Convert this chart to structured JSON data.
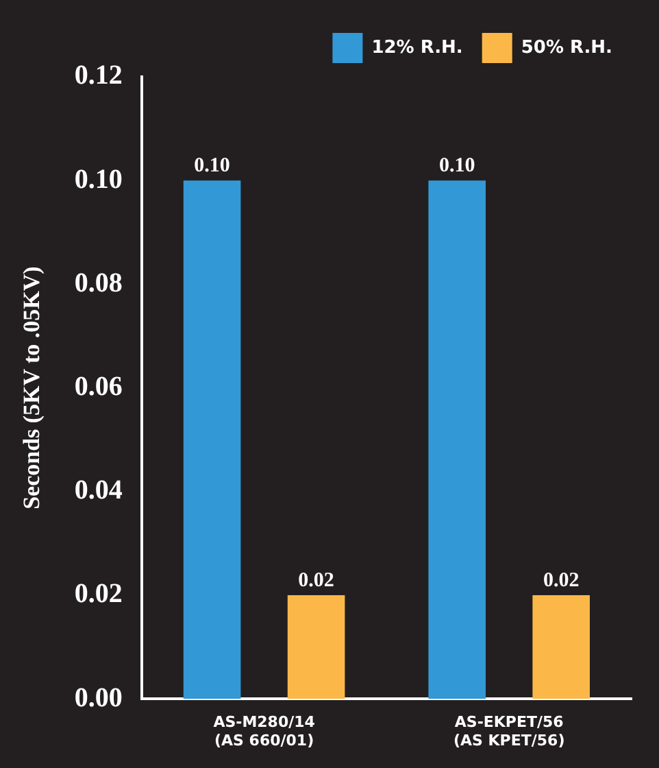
{
  "chart_data": {
    "type": "bar",
    "ylabel": "Seconds (5KV to .05KV)",
    "categories": [
      "AS-M280/14\n(AS 660/01)",
      "AS-EKPET/56\n(AS KPET/56)"
    ],
    "series": [
      {
        "name": "12% R.H.",
        "color": "#3399d6",
        "values": [
          0.1,
          0.1
        ],
        "value_labels": [
          "0.10",
          "0.10"
        ]
      },
      {
        "name": "50% R.H.",
        "color": "#fbb848",
        "values": [
          0.02,
          0.02
        ],
        "value_labels": [
          "0.02",
          "0.02"
        ]
      }
    ],
    "ylim": [
      0,
      0.12
    ],
    "yticks": [
      {
        "value": 0,
        "label": "0.00"
      },
      {
        "value": 0.02,
        "label": "0.02"
      },
      {
        "value": 0.04,
        "label": "0.04"
      },
      {
        "value": 0.06,
        "label": "0.06"
      },
      {
        "value": 0.08,
        "label": "0.08"
      },
      {
        "value": 0.1,
        "label": "0.10"
      },
      {
        "value": 0.12,
        "label": "0.12"
      }
    ],
    "grid": false,
    "legend": "top right"
  }
}
